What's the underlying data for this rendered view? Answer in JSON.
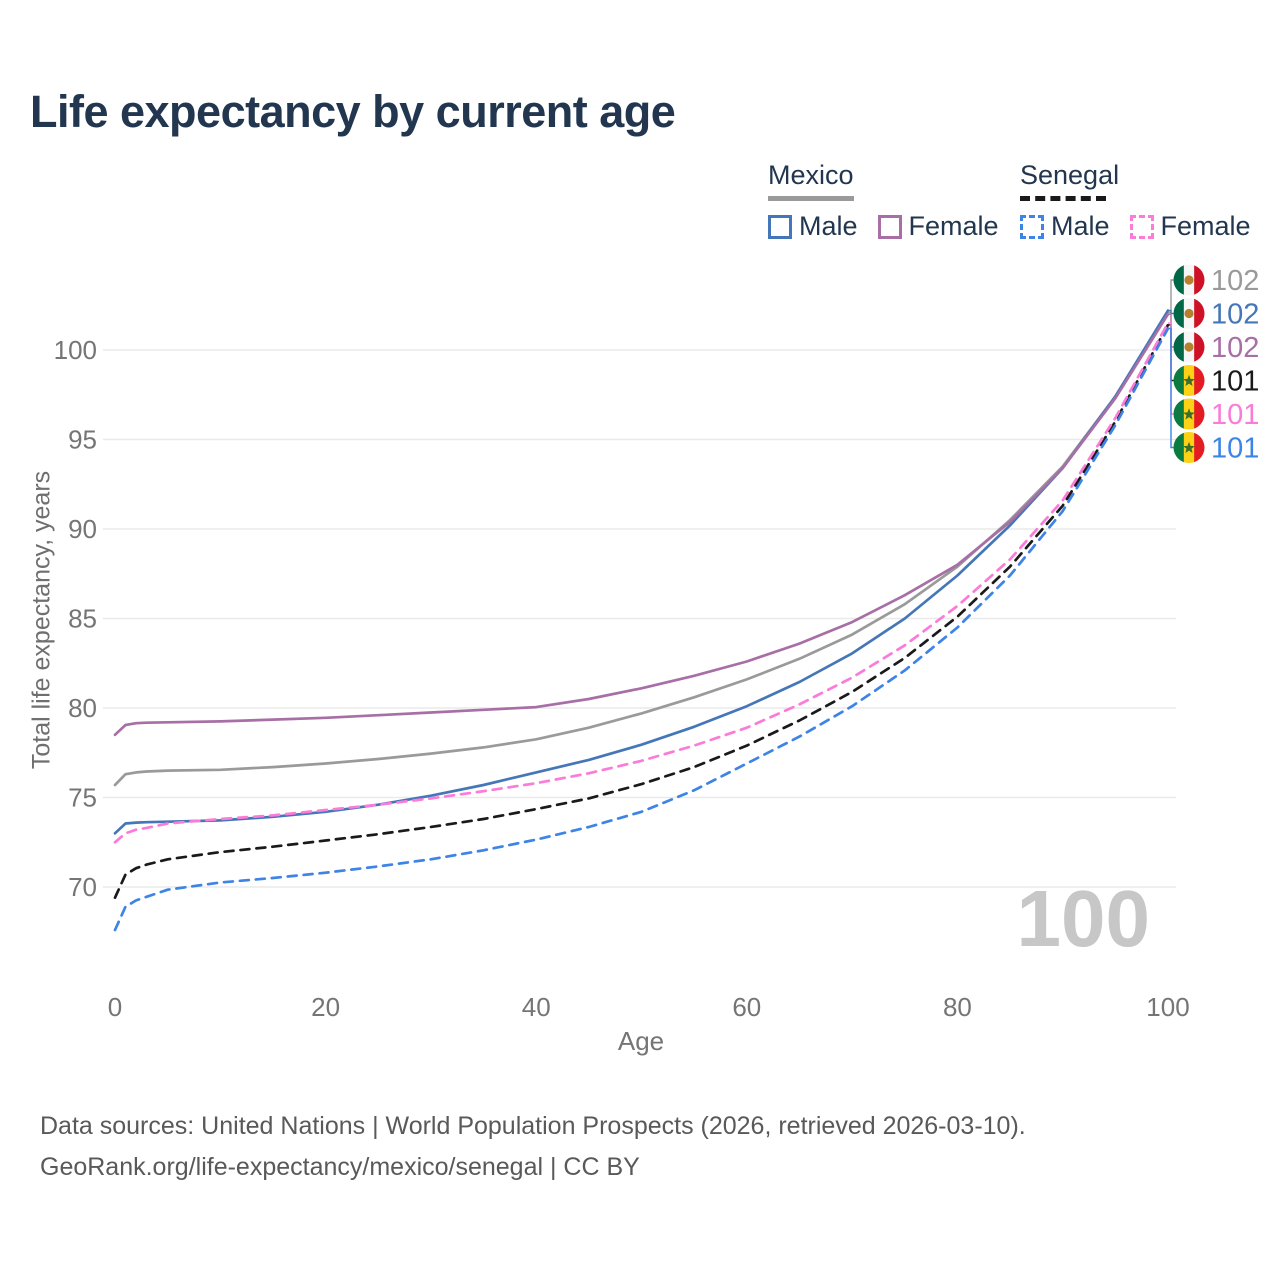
{
  "title": "Life expectancy by current age",
  "watermark_age": "100",
  "colors": {
    "title_text": "#22374f",
    "axis_text": "#757575",
    "grid": "#eaeaea",
    "watermark": "#c7c7c7",
    "mexico_total": "#9a9a9a",
    "mexico_male": "#4577b8",
    "mexico_female": "#a76fa6",
    "senegal_total": "#1a1a1a",
    "senegal_male": "#3d84e6",
    "senegal_female": "#fb7cd8"
  },
  "legend": {
    "groups": [
      {
        "name": "Mexico",
        "underline": "solid",
        "underline_color": "#9a9a9a",
        "items": [
          {
            "label": "Male",
            "color": "#4577b8",
            "dashed": false
          },
          {
            "label": "Female",
            "color": "#a76fa6",
            "dashed": false
          }
        ]
      },
      {
        "name": "Senegal",
        "underline": "dashed",
        "underline_color": "#1a1a1a",
        "items": [
          {
            "label": "Male",
            "color": "#3d84e6",
            "dashed": true
          },
          {
            "label": "Female",
            "color": "#fb7cd8",
            "dashed": true
          }
        ]
      }
    ]
  },
  "chart_data": {
    "type": "line",
    "title": "Life expectancy by current age",
    "xlabel": "Age",
    "ylabel": "Total life expectancy, years",
    "xlim": [
      0,
      100
    ],
    "ylim": [
      66.5,
      103
    ],
    "x_ticks": [
      0,
      20,
      40,
      60,
      80,
      100
    ],
    "y_ticks": [
      70,
      75,
      80,
      85,
      90,
      95,
      100
    ],
    "grid": true,
    "legend_position": "top-right",
    "x": [
      0,
      1,
      2,
      3,
      5,
      10,
      15,
      20,
      25,
      30,
      35,
      40,
      45,
      50,
      55,
      60,
      65,
      70,
      75,
      80,
      85,
      90,
      95,
      100
    ],
    "series": [
      {
        "id": "mexico-total",
        "name": "Mexico - Total",
        "country": "Mexico",
        "sex": "Total",
        "color": "#9a9a9a",
        "dashed": false,
        "end_label": "102",
        "values": [
          75.7,
          76.3,
          76.4,
          76.45,
          76.5,
          76.55,
          76.7,
          76.9,
          77.15,
          77.45,
          77.8,
          78.25,
          78.9,
          79.7,
          80.6,
          81.6,
          82.75,
          84.1,
          85.8,
          87.9,
          90.5,
          93.5,
          97.4,
          102.1
        ]
      },
      {
        "id": "mexico-male",
        "name": "Mexico - Male",
        "country": "Mexico",
        "sex": "Male",
        "color": "#4577b8",
        "dashed": false,
        "end_label": "102",
        "values": [
          73.0,
          73.55,
          73.6,
          73.62,
          73.65,
          73.72,
          73.92,
          74.2,
          74.6,
          75.1,
          75.7,
          76.4,
          77.1,
          77.95,
          78.95,
          80.1,
          81.45,
          83.05,
          85.0,
          87.4,
          90.2,
          93.4,
          97.4,
          102.2
        ]
      },
      {
        "id": "mexico-female",
        "name": "Mexico - Female",
        "country": "Mexico",
        "sex": "Female",
        "color": "#a76fa6",
        "dashed": false,
        "end_label": "102",
        "values": [
          78.5,
          79.05,
          79.15,
          79.18,
          79.2,
          79.25,
          79.35,
          79.45,
          79.6,
          79.75,
          79.9,
          80.05,
          80.5,
          81.1,
          81.8,
          82.6,
          83.6,
          84.8,
          86.3,
          88.0,
          90.4,
          93.4,
          97.3,
          102.0
        ]
      },
      {
        "id": "senegal-total",
        "name": "Senegal - Total",
        "country": "Senegal",
        "sex": "Total",
        "color": "#1a1a1a",
        "dashed": true,
        "end_label": "101",
        "values": [
          69.4,
          70.7,
          71.05,
          71.25,
          71.55,
          71.95,
          72.25,
          72.6,
          72.95,
          73.35,
          73.8,
          74.35,
          74.95,
          75.75,
          76.7,
          77.9,
          79.3,
          80.9,
          82.8,
          85.1,
          87.9,
          91.3,
          96.0,
          101.4
        ]
      },
      {
        "id": "senegal-female",
        "name": "Senegal - Female",
        "country": "Senegal",
        "sex": "Female",
        "color": "#fb7cd8",
        "dashed": true,
        "end_label": "101",
        "values": [
          72.5,
          73.0,
          73.2,
          73.3,
          73.55,
          73.8,
          74.0,
          74.3,
          74.6,
          74.95,
          75.35,
          75.8,
          76.35,
          77.05,
          77.9,
          78.9,
          80.2,
          81.7,
          83.5,
          85.7,
          88.3,
          91.6,
          96.2,
          101.5
        ]
      },
      {
        "id": "senegal-male",
        "name": "Senegal - Male",
        "country": "Senegal",
        "sex": "Male",
        "color": "#3d84e6",
        "dashed": true,
        "end_label": "101",
        "values": [
          67.6,
          68.9,
          69.25,
          69.45,
          69.85,
          70.25,
          70.5,
          70.8,
          71.15,
          71.55,
          72.05,
          72.65,
          73.35,
          74.2,
          75.4,
          76.9,
          78.4,
          80.1,
          82.1,
          84.5,
          87.4,
          91.0,
          95.8,
          101.2
        ]
      }
    ]
  },
  "end_labels": [
    {
      "value": "102",
      "color": "#9a9a9a",
      "flag": "mexico",
      "series_id": "mexico-total"
    },
    {
      "value": "102",
      "color": "#4577b8",
      "flag": "mexico",
      "series_id": "mexico-male"
    },
    {
      "value": "102",
      "color": "#a76fa6",
      "flag": "mexico",
      "series_id": "mexico-female"
    },
    {
      "value": "101",
      "color": "#1a1a1a",
      "flag": "senegal",
      "series_id": "senegal-total"
    },
    {
      "value": "101",
      "color": "#fb7cd8",
      "flag": "senegal",
      "series_id": "senegal-female"
    },
    {
      "value": "101",
      "color": "#3d84e6",
      "flag": "senegal",
      "series_id": "senegal-male"
    }
  ],
  "flag_colors": {
    "mexico": {
      "left": "#006847",
      "mid": "#f6f6f6",
      "right": "#ce1126",
      "emblem": "#b5812e"
    },
    "senegal": {
      "left": "#0b7b3e",
      "mid": "#fcd116",
      "right": "#e31b23",
      "emblem": "#3c6e29"
    }
  },
  "footer": {
    "line1": "Data sources: United Nations | World Population Prospects (2026, retrieved 2026-03-10).",
    "line2": "GeoRank.org/life-expectancy/mexico/senegal | CC BY"
  }
}
